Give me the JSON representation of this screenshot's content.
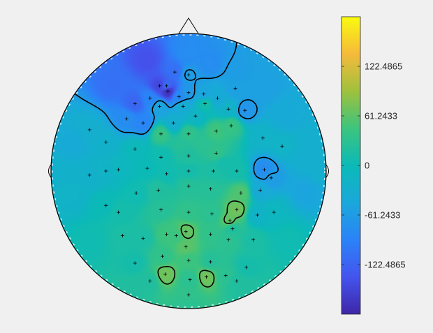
{
  "chart_data": {
    "type": "heatmap",
    "subtype": "eeg-topoplot",
    "title": "",
    "colormap": "parula",
    "colorbar": {
      "location": "right",
      "ticks": [
        122.4865,
        61.2433,
        0,
        -61.2433,
        -122.4865
      ],
      "tick_labels": [
        "122.4865",
        "61.2433",
        "0",
        "-61.2433",
        "-122.4865"
      ],
      "range": [
        -183.73,
        183.73
      ]
    },
    "colors": {
      "background": "#f0f0f0",
      "contour": "#000000",
      "electrode_marker": "#000000",
      "head_outline": "#000000"
    },
    "electrode_marker": "+",
    "contour_levels": [
      -61.2433,
      61.2433
    ],
    "electrodes": [
      [
        -0.39,
        0.49,
        -120
      ],
      [
        -0.21,
        0.62,
        -150
      ],
      [
        -0.16,
        0.62,
        -115
      ],
      [
        -0.15,
        0.58,
        -170
      ],
      [
        -0.07,
        0.54,
        -85
      ],
      [
        0.0,
        0.57,
        -65
      ],
      [
        0.11,
        0.56,
        -50
      ],
      [
        0.21,
        0.53,
        -40
      ],
      [
        0.41,
        0.44,
        -70
      ],
      [
        -0.21,
        0.47,
        -50
      ],
      [
        -0.04,
        0.47,
        -35
      ],
      [
        0.12,
        0.49,
        10
      ],
      [
        -0.33,
        0.35,
        -90
      ],
      [
        -0.11,
        0.35,
        -30
      ],
      [
        -0.2,
        0.27,
        40
      ],
      [
        0.0,
        0.27,
        35
      ],
      [
        0.2,
        0.29,
        45
      ],
      [
        0.31,
        0.33,
        40
      ],
      [
        0.54,
        0.24,
        -20
      ],
      [
        -0.6,
        0.21,
        -25
      ],
      [
        -0.39,
        0.16,
        -5
      ],
      [
        -0.2,
        0.1,
        5
      ],
      [
        0.0,
        0.11,
        20
      ],
      [
        0.2,
        0.13,
        35
      ],
      [
        -0.51,
        0.01,
        -10
      ],
      [
        -0.3,
        0.02,
        0
      ],
      [
        -0.16,
        -0.02,
        5
      ],
      [
        0.0,
        0.0,
        10
      ],
      [
        0.18,
        0.0,
        15
      ],
      [
        0.35,
        0.0,
        10
      ],
      [
        0.55,
        0.01,
        -80
      ],
      [
        -0.72,
        -0.03,
        -25
      ],
      [
        -0.38,
        -0.16,
        5
      ],
      [
        -0.22,
        -0.14,
        20
      ],
      [
        0.0,
        -0.11,
        25
      ],
      [
        0.16,
        -0.13,
        25
      ],
      [
        0.38,
        -0.16,
        55
      ],
      [
        0.52,
        -0.14,
        -40
      ],
      [
        -0.51,
        -0.3,
        10
      ],
      [
        -0.2,
        -0.28,
        25
      ],
      [
        0.0,
        -0.3,
        35
      ],
      [
        0.17,
        -0.31,
        30
      ],
      [
        0.35,
        -0.28,
        70
      ],
      [
        0.5,
        -0.32,
        -20
      ],
      [
        -0.33,
        -0.49,
        15
      ],
      [
        -0.16,
        -0.46,
        45
      ],
      [
        -0.02,
        -0.44,
        65
      ],
      [
        0.16,
        -0.46,
        35
      ],
      [
        0.32,
        -0.42,
        20
      ],
      [
        -0.39,
        -0.67,
        10
      ],
      [
        -0.19,
        -0.62,
        35
      ],
      [
        0.0,
        -0.65,
        45
      ],
      [
        0.16,
        -0.66,
        25
      ],
      [
        0.42,
        -0.7,
        10
      ],
      [
        -0.02,
        -0.55,
        60
      ],
      [
        -0.17,
        -0.75,
        70
      ],
      [
        0.01,
        -0.79,
        30
      ],
      [
        0.13,
        -0.77,
        70
      ],
      [
        0.27,
        -0.76,
        30
      ],
      [
        -0.09,
        -0.47,
        45
      ],
      [
        0.3,
        -0.36,
        65
      ],
      [
        -0.28,
        -0.8,
        20
      ],
      [
        0.35,
        -0.8,
        20
      ],
      [
        0.29,
        -0.5,
        30
      ],
      [
        -0.45,
        0.38,
        -80
      ],
      [
        -0.28,
        0.53,
        -90
      ],
      [
        0.05,
        0.4,
        -15
      ],
      [
        0.29,
        0.45,
        -20
      ],
      [
        -0.48,
        -0.47,
        15
      ],
      [
        0.47,
        -0.5,
        15
      ],
      [
        -0.6,
        0.0,
        -20
      ],
      [
        0.6,
        -0.05,
        -60
      ],
      [
        -0.72,
        0.3,
        -30
      ],
      [
        0.68,
        0.18,
        -20
      ],
      [
        0.0,
        0.7,
        -60
      ],
      [
        0.34,
        0.6,
        -55
      ],
      [
        -0.1,
        0.72,
        -110
      ],
      [
        -0.6,
        -0.25,
        0
      ],
      [
        0.62,
        -0.3,
        -10
      ],
      [
        0.0,
        -0.9,
        35
      ]
    ],
    "field_anchors": [
      [
        0.15,
        0.78,
        -80
      ],
      [
        0.35,
        0.72,
        -60
      ],
      [
        0.55,
        0.6,
        -55
      ],
      [
        -0.55,
        0.62,
        -110
      ],
      [
        -0.3,
        0.8,
        -140
      ],
      [
        0.0,
        0.85,
        -80
      ],
      [
        0.7,
        0.4,
        -40
      ],
      [
        0.85,
        0.1,
        -30
      ],
      [
        0.85,
        -0.15,
        -50
      ],
      [
        -0.85,
        0.2,
        -40
      ],
      [
        -0.85,
        -0.2,
        -20
      ],
      [
        -0.7,
        -0.5,
        5
      ],
      [
        0.7,
        -0.5,
        5
      ],
      [
        -0.4,
        -0.85,
        20
      ],
      [
        0.4,
        -0.85,
        20
      ],
      [
        0.0,
        -0.98,
        30
      ],
      [
        -0.95,
        0.0,
        -25
      ],
      [
        0.95,
        0.0,
        -30
      ],
      [
        0.25,
        0.05,
        10
      ],
      [
        0.1,
        0.2,
        30
      ],
      [
        -0.05,
        0.2,
        25
      ]
    ]
  }
}
